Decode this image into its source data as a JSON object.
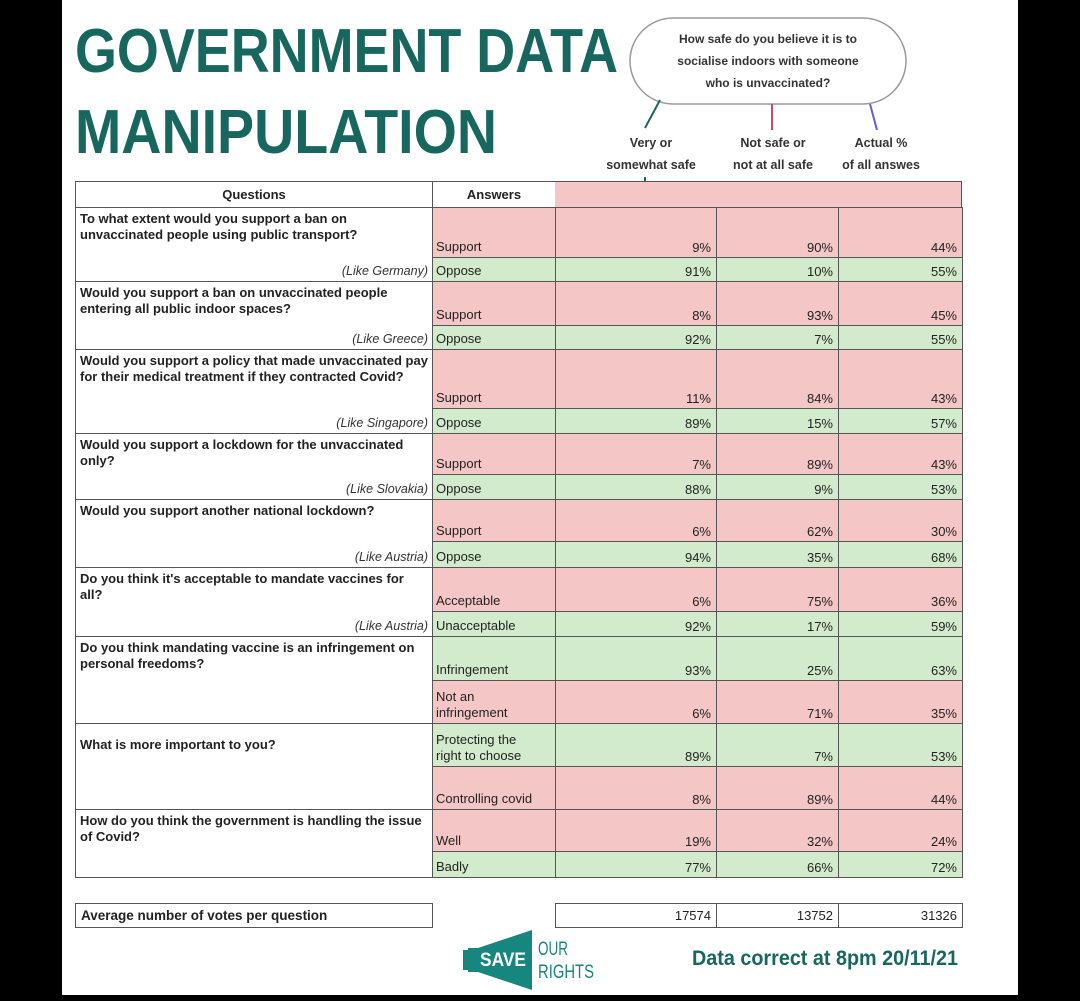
{
  "header": {
    "title_lines": [
      "GOVERNMENT DATA",
      "MANIPULATION"
    ],
    "bubble_lines": [
      "How safe do you believe it is to",
      "socialise indoors with someone",
      "who is unvaccinated?"
    ],
    "column_headers": [
      [
        "Very or",
        "somewhat safe"
      ],
      [
        "Not safe or",
        "not at all safe"
      ],
      [
        "Actual %",
        "of all answes"
      ]
    ]
  },
  "table": {
    "headers": [
      "Questions",
      "Answers"
    ],
    "questions": [
      {
        "text": "To what extent would you support a ban on unvaccinated people using public transport?",
        "example": "(Like Germany)",
        "answers": [
          {
            "label": "Support",
            "color": "#f4c6c6",
            "values": [
              "9%",
              "90%",
              "44%"
            ]
          },
          {
            "label": "Oppose",
            "color": "#d3ebcd",
            "values": [
              "91%",
              "10%",
              "55%"
            ]
          }
        ]
      },
      {
        "text": "Would you support a ban on unvaccinated people entering all public indoor spaces?",
        "example": "(Like Greece)",
        "answers": [
          {
            "label": "Support",
            "color": "#f4c6c6",
            "values": [
              "8%",
              "93%",
              "45%"
            ]
          },
          {
            "label": "Oppose",
            "color": "#d3ebcd",
            "values": [
              "92%",
              "7%",
              "55%"
            ]
          }
        ]
      },
      {
        "text": "Would you support a policy that made unvaccinated pay for their medical treatment if they contracted Covid?",
        "example": "(Like Singapore)",
        "answers": [
          {
            "label": "Support",
            "color": "#f4c6c6",
            "values": [
              "11%",
              "84%",
              "43%"
            ]
          },
          {
            "label": "Oppose",
            "color": "#d3ebcd",
            "values": [
              "89%",
              "15%",
              "57%"
            ]
          }
        ]
      },
      {
        "text": "Would you support a lockdown for the unvaccinated only?",
        "example": "(Like Slovakia)",
        "answers": [
          {
            "label": "Support",
            "color": "#f4c6c6",
            "values": [
              "7%",
              "89%",
              "43%"
            ]
          },
          {
            "label": "Oppose",
            "color": "#d3ebcd",
            "values": [
              "88%",
              "9%",
              "53%"
            ]
          }
        ]
      },
      {
        "text": "Would you support another national lockdown?",
        "example": "(Like Austria)",
        "answers": [
          {
            "label": "Support",
            "color": "#f4c6c6",
            "values": [
              "6%",
              "62%",
              "30%"
            ]
          },
          {
            "label": "Oppose",
            "color": "#d3ebcd",
            "values": [
              "94%",
              "35%",
              "68%"
            ]
          }
        ]
      },
      {
        "text": "Do you think it's acceptable to mandate vaccines for all?",
        "example": "(Like Austria)",
        "answers": [
          {
            "label": "Acceptable",
            "color": "#f4c6c6",
            "values": [
              "6%",
              "75%",
              "36%"
            ]
          },
          {
            "label": "Unacceptable",
            "color": "#d3ebcd",
            "values": [
              "92%",
              "17%",
              "59%"
            ]
          }
        ]
      },
      {
        "text": "Do you think mandating vaccine is an infringement on personal freedoms?",
        "answers": [
          {
            "label": "Infringement",
            "color": "#d3ebcd",
            "values": [
              "93%",
              "25%",
              "63%"
            ]
          },
          {
            "label": "Not an infringement",
            "color": "#f4c6c6",
            "values": [
              "6%",
              "71%",
              "35%"
            ]
          }
        ]
      },
      {
        "text": "What is more important to you?",
        "answers": [
          {
            "label": "Protecting the right to choose",
            "color": "#d3ebcd",
            "values": [
              "89%",
              "7%",
              "53%"
            ]
          },
          {
            "label": "Controlling covid",
            "color": "#f4c6c6",
            "values": [
              "8%",
              "89%",
              "44%"
            ]
          }
        ]
      },
      {
        "text": "How do you think the government is handling the issue of Covid?",
        "answers": [
          {
            "label": "Well",
            "color": "#f4c6c6",
            "values": [
              "19%",
              "32%",
              "24%"
            ]
          },
          {
            "label": "Badly",
            "color": "#d3ebcd",
            "values": [
              "77%",
              "66%",
              "72%"
            ]
          }
        ]
      }
    ]
  },
  "footer": {
    "votes_label": "Average number of votes per question",
    "votes": [
      17574,
      13752,
      31326
    ],
    "logo": {
      "save": "SAVE",
      "our": "OUR",
      "rights": "RIGHTS"
    },
    "note": "Data correct at 8pm 20/11/21"
  }
}
